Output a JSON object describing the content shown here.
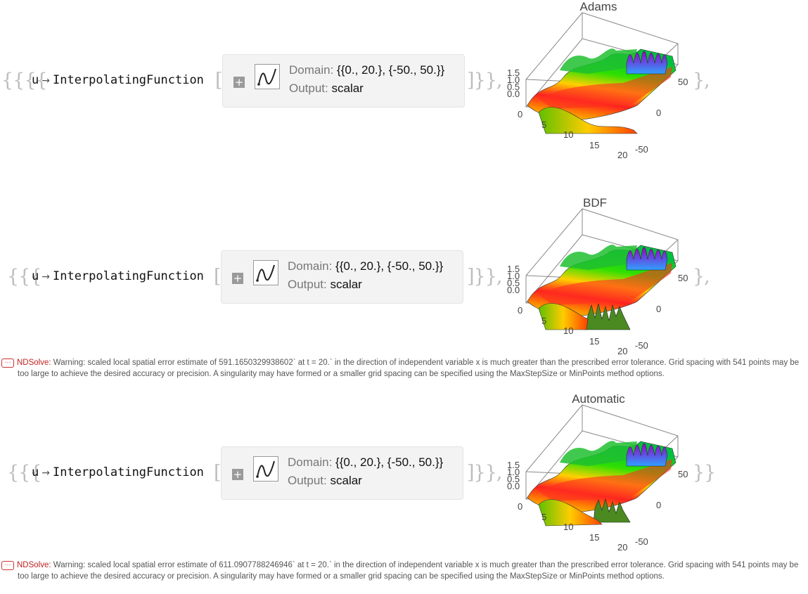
{
  "outputs": [
    {
      "open_brackets": "{{{{",
      "close_brackets": "]}},",
      "rule_var": "u",
      "rule_arrow": "→",
      "function_name": "InterpolatingFunction",
      "open_func": "[",
      "domain_label": "Domain:",
      "domain_value": "{{0., 20.}, {-50., 50.}}",
      "output_label": "Output:",
      "output_value": "scalar",
      "plot_title": "Adams",
      "after_plot": "},",
      "z_ticks": [
        "1.5",
        "1.0",
        "0.5",
        "0.0"
      ],
      "t_ticks": [
        "0",
        "5",
        "10",
        "15",
        "20"
      ],
      "x_ticks": [
        "50",
        "0",
        "-50"
      ]
    },
    {
      "open_brackets": "{{{",
      "close_brackets": "]}},",
      "rule_var": "u",
      "rule_arrow": "→",
      "function_name": "InterpolatingFunction",
      "open_func": "[",
      "domain_label": "Domain:",
      "domain_value": "{{0., 20.}, {-50., 50.}}",
      "output_label": "Output:",
      "output_value": "scalar",
      "plot_title": "BDF",
      "after_plot": "},",
      "z_ticks": [
        "1.5",
        "1.0",
        "0.5",
        "0.0"
      ],
      "t_ticks": [
        "0",
        "5",
        "10",
        "15",
        "20"
      ],
      "x_ticks": [
        "50",
        "0",
        "-50"
      ]
    },
    {
      "open_brackets": "{{{",
      "close_brackets": "]}},",
      "rule_var": "u",
      "rule_arrow": "→",
      "function_name": "InterpolatingFunction",
      "open_func": "[",
      "domain_label": "Domain:",
      "domain_value": "{{0., 20.}, {-50., 50.}}",
      "output_label": "Output:",
      "output_value": "scalar",
      "plot_title": "Automatic",
      "after_plot": "}}",
      "z_ticks": [
        "1.5",
        "1.0",
        "0.5",
        "0.0"
      ],
      "t_ticks": [
        "0",
        "5",
        "10",
        "15",
        "20"
      ],
      "x_ticks": [
        "50",
        "0",
        "-50"
      ]
    }
  ],
  "messages": [
    {
      "icon": "···",
      "tag": "NDSolve:",
      "line1": " Warning: scaled local spatial error estimate of 591.1650329938602` at t = 20.` in the direction of independent variable x is much greater than the prescribed error tolerance. Grid spacing with 541 points may be",
      "line2": "too large to achieve the desired accuracy or precision. A singularity may have formed or a smaller grid spacing can be specified using the MaxStepSize or MinPoints method options."
    },
    {
      "icon": "···",
      "tag": "NDSolve:",
      "line1": " Warning: scaled local spatial error estimate of 611.0907788246946` at t = 20.` in the direction of independent variable x is much greater than the prescribed error tolerance. Grid spacing with 541 points may be",
      "line2": "too large to achieve the desired accuracy or precision. A singularity may have formed or a smaller grid spacing can be specified using the MaxStepSize or MinPoints method options."
    }
  ]
}
